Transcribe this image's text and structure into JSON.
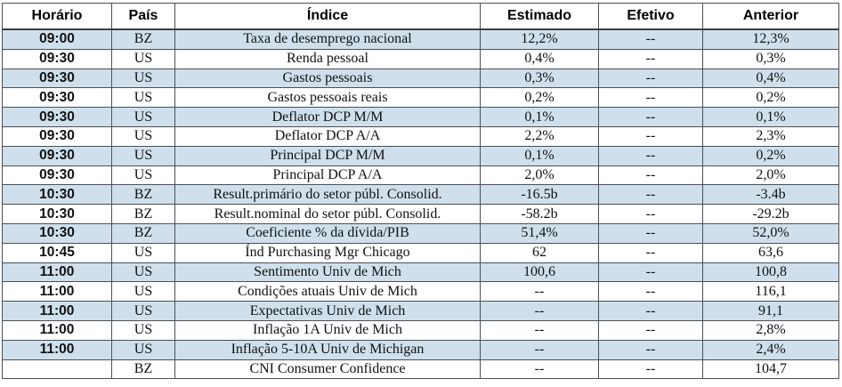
{
  "table": {
    "headers": [
      "Horário",
      "País",
      "Índice",
      "Estimado",
      "Efetivo",
      "Anterior"
    ],
    "rows": [
      [
        "09:00",
        "BZ",
        "Taxa de desemprego nacional",
        "12,2%",
        "--",
        "12,3%"
      ],
      [
        "09:30",
        "US",
        "Renda pessoal",
        "0,4%",
        "--",
        "0,3%"
      ],
      [
        "09:30",
        "US",
        "Gastos pessoais",
        "0,3%",
        "--",
        "0,4%"
      ],
      [
        "09:30",
        "US",
        "Gastos pessoais reais",
        "0,2%",
        "--",
        "0,2%"
      ],
      [
        "09:30",
        "US",
        "Deflator DCP M/M",
        "0,1%",
        "--",
        "0,1%"
      ],
      [
        "09:30",
        "US",
        "Deflator DCP A/A",
        "2,2%",
        "--",
        "2,3%"
      ],
      [
        "09:30",
        "US",
        "Principal DCP M/M",
        "0,1%",
        "--",
        "0,2%"
      ],
      [
        "09:30",
        "US",
        "Principal DCP A/A",
        "2,0%",
        "--",
        "2,0%"
      ],
      [
        "10:30",
        "BZ",
        "Result.primário do setor públ. Consolid.",
        "-16.5b",
        "--",
        "-3.4b"
      ],
      [
        "10:30",
        "BZ",
        "Result.nominal do setor públ. Consolid.",
        "-58.2b",
        "--",
        "-29.2b"
      ],
      [
        "10:30",
        "BZ",
        "Coeficiente % da dívida/PIB",
        "51,4%",
        "--",
        "52,0%"
      ],
      [
        "10:45",
        "US",
        "Índ Purchasing Mgr Chicago",
        "62",
        "--",
        "63,6"
      ],
      [
        "11:00",
        "US",
        "Sentimento Univ de Mich",
        "100,6",
        "--",
        "100,8"
      ],
      [
        "11:00",
        "US",
        "Condições atuais Univ de Mich",
        "--",
        "--",
        "116,1"
      ],
      [
        "11:00",
        "US",
        "Expectativas Univ de Mich",
        "--",
        "--",
        "91,1"
      ],
      [
        "11:00",
        "US",
        "Inflação 1A Univ de Mich",
        "--",
        "--",
        "2,8%"
      ],
      [
        "11:00",
        "US",
        "Inflação 5-10A Univ de Michigan",
        "--",
        "--",
        "2,4%"
      ],
      [
        "",
        "BZ",
        "CNI Consumer Confidence",
        "--",
        "--",
        "104,7"
      ]
    ]
  },
  "colors": {
    "row_shade": "#cfe0ec",
    "border": "#4a4f58"
  }
}
